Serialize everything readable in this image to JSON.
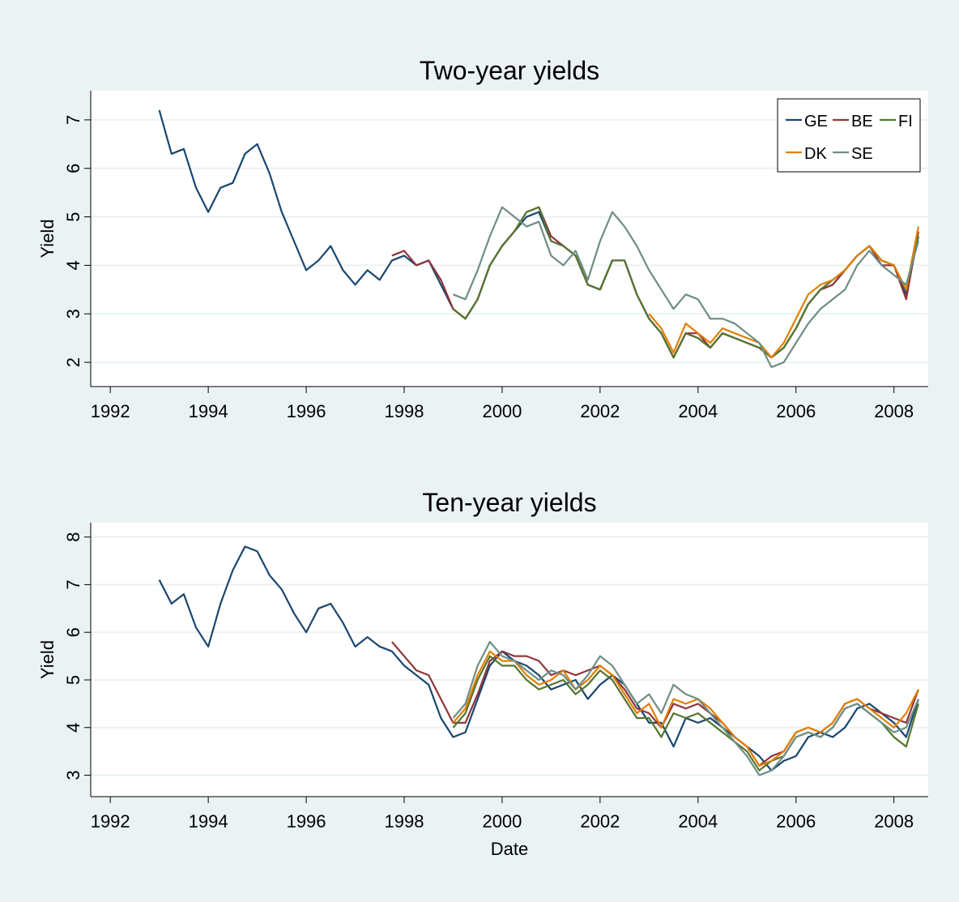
{
  "chart_data": [
    {
      "type": "line",
      "title": "Two-year yields",
      "ylabel": "Yield",
      "x": [
        1993,
        1993.25,
        1993.5,
        1993.75,
        1994,
        1994.25,
        1994.5,
        1994.75,
        1995,
        1995.25,
        1995.5,
        1995.75,
        1996,
        1996.25,
        1996.5,
        1996.75,
        1997,
        1997.25,
        1997.5,
        1997.75,
        1998,
        1998.25,
        1998.5,
        1998.75,
        1999,
        1999.25,
        1999.5,
        1999.75,
        2000,
        2000.25,
        2000.5,
        2000.75,
        2001,
        2001.25,
        2001.5,
        2001.75,
        2002,
        2002.25,
        2002.5,
        2002.75,
        2003,
        2003.25,
        2003.5,
        2003.75,
        2004,
        2004.25,
        2004.5,
        2004.75,
        2005,
        2005.25,
        2005.5,
        2005.75,
        2006,
        2006.25,
        2006.5,
        2006.75,
        2007,
        2007.25,
        2007.5,
        2007.75,
        2008,
        2008.25,
        2008.5
      ],
      "xlim": [
        1991.6,
        2008.7
      ],
      "xticks": [
        1992,
        1994,
        1996,
        1998,
        2000,
        2002,
        2004,
        2006,
        2008
      ],
      "ylim": [
        1.5,
        7.6
      ],
      "yticks": [
        2,
        3,
        4,
        5,
        6,
        7
      ],
      "grid": true,
      "legend": "top-right",
      "series": [
        {
          "name": "GE",
          "color": "#1a476f",
          "values": [
            7.2,
            6.3,
            6.4,
            5.6,
            5.1,
            5.6,
            5.7,
            6.3,
            6.5,
            5.9,
            5.1,
            4.5,
            3.9,
            4.1,
            4.4,
            3.9,
            3.6,
            3.9,
            3.7,
            4.1,
            4.2,
            4.0,
            4.1,
            3.6,
            3.1,
            2.9,
            3.3,
            4.0,
            4.4,
            4.7,
            5.0,
            5.1,
            4.5,
            4.4,
            4.2,
            3.6,
            3.5,
            4.1,
            4.1,
            3.4,
            2.9,
            2.6,
            2.1,
            2.6,
            2.5,
            2.3,
            2.6,
            2.5,
            2.4,
            2.3,
            2.1,
            2.3,
            2.7,
            3.2,
            3.5,
            3.6,
            3.9,
            4.2,
            4.4,
            4.1,
            4.0,
            3.4,
            4.6
          ]
        },
        {
          "name": "BE",
          "color": "#90353b",
          "values": [
            null,
            null,
            null,
            null,
            null,
            null,
            null,
            null,
            null,
            null,
            null,
            null,
            null,
            null,
            null,
            null,
            null,
            null,
            null,
            4.2,
            4.3,
            4.0,
            4.1,
            3.7,
            3.1,
            2.9,
            3.3,
            4.0,
            4.4,
            4.7,
            5.1,
            5.2,
            4.6,
            4.4,
            4.2,
            3.6,
            3.5,
            4.1,
            4.1,
            3.4,
            2.9,
            2.6,
            2.1,
            2.6,
            2.6,
            2.3,
            2.6,
            2.5,
            2.4,
            2.3,
            2.1,
            2.3,
            2.7,
            3.2,
            3.5,
            3.6,
            3.9,
            4.2,
            4.4,
            4.0,
            4.0,
            3.3,
            4.7
          ]
        },
        {
          "name": "FI",
          "color": "#55752f",
          "values": [
            null,
            null,
            null,
            null,
            null,
            null,
            null,
            null,
            null,
            null,
            null,
            null,
            null,
            null,
            null,
            null,
            null,
            null,
            null,
            null,
            null,
            null,
            null,
            null,
            3.1,
            2.9,
            3.3,
            4.0,
            4.4,
            4.7,
            5.1,
            5.2,
            4.5,
            4.4,
            4.2,
            3.6,
            3.5,
            4.1,
            4.1,
            3.4,
            2.9,
            2.6,
            2.1,
            2.6,
            2.5,
            2.3,
            2.6,
            2.5,
            2.4,
            2.3,
            2.1,
            2.3,
            2.7,
            3.2,
            3.5,
            3.7,
            3.9,
            4.2,
            4.4,
            4.1,
            4.0,
            3.5,
            4.6
          ]
        },
        {
          "name": "DK",
          "color": "#e37e00",
          "values": [
            null,
            null,
            null,
            null,
            null,
            null,
            null,
            null,
            null,
            null,
            null,
            null,
            null,
            null,
            null,
            null,
            null,
            null,
            null,
            null,
            null,
            null,
            null,
            null,
            null,
            null,
            null,
            null,
            null,
            null,
            null,
            null,
            null,
            null,
            null,
            null,
            null,
            null,
            null,
            null,
            3.0,
            2.7,
            2.2,
            2.8,
            2.6,
            2.4,
            2.7,
            2.6,
            2.5,
            2.4,
            2.1,
            2.4,
            2.9,
            3.4,
            3.6,
            3.7,
            3.9,
            4.2,
            4.4,
            4.1,
            4.0,
            3.5,
            4.8
          ]
        },
        {
          "name": "SE",
          "color": "#6e8e84",
          "values": [
            null,
            null,
            null,
            null,
            null,
            null,
            null,
            null,
            null,
            null,
            null,
            null,
            null,
            null,
            null,
            null,
            null,
            null,
            null,
            null,
            null,
            null,
            null,
            null,
            3.4,
            3.3,
            3.9,
            4.6,
            5.2,
            5.0,
            4.8,
            4.9,
            4.2,
            4.0,
            4.3,
            3.7,
            4.5,
            5.1,
            4.8,
            4.4,
            3.9,
            3.5,
            3.1,
            3.4,
            3.3,
            2.9,
            2.9,
            2.8,
            2.6,
            2.4,
            1.9,
            2.0,
            2.4,
            2.8,
            3.1,
            3.3,
            3.5,
            4.0,
            4.3,
            4.0,
            3.8,
            3.6,
            4.5
          ]
        }
      ]
    },
    {
      "type": "line",
      "title": "Ten-year yields",
      "ylabel": "Yield",
      "xlabel": "Date",
      "x": [
        1993,
        1993.25,
        1993.5,
        1993.75,
        1994,
        1994.25,
        1994.5,
        1994.75,
        1995,
        1995.25,
        1995.5,
        1995.75,
        1996,
        1996.25,
        1996.5,
        1996.75,
        1997,
        1997.25,
        1997.5,
        1997.75,
        1998,
        1998.25,
        1998.5,
        1998.75,
        1999,
        1999.25,
        1999.5,
        1999.75,
        2000,
        2000.25,
        2000.5,
        2000.75,
        2001,
        2001.25,
        2001.5,
        2001.75,
        2002,
        2002.25,
        2002.5,
        2002.75,
        2003,
        2003.25,
        2003.5,
        2003.75,
        2004,
        2004.25,
        2004.5,
        2004.75,
        2005,
        2005.25,
        2005.5,
        2005.75,
        2006,
        2006.25,
        2006.5,
        2006.75,
        2007,
        2007.25,
        2007.5,
        2007.75,
        2008,
        2008.25,
        2008.5
      ],
      "xlim": [
        1991.6,
        2008.7
      ],
      "xticks": [
        1992,
        1994,
        1996,
        1998,
        2000,
        2002,
        2004,
        2006,
        2008
      ],
      "ylim": [
        2.55,
        8.3
      ],
      "yticks": [
        3,
        4,
        5,
        6,
        7,
        8
      ],
      "grid": true,
      "series": [
        {
          "color": "#1a476f",
          "values": [
            7.1,
            6.6,
            6.8,
            6.1,
            5.7,
            6.6,
            7.3,
            7.8,
            7.7,
            7.2,
            6.9,
            6.4,
            6.0,
            6.5,
            6.6,
            6.2,
            5.7,
            5.9,
            5.7,
            5.6,
            5.3,
            5.1,
            4.9,
            4.2,
            3.8,
            3.9,
            4.6,
            5.3,
            5.6,
            5.4,
            5.3,
            5.1,
            4.8,
            4.9,
            5.0,
            4.6,
            4.9,
            5.1,
            4.9,
            4.5,
            4.1,
            4.1,
            3.6,
            4.2,
            4.1,
            4.2,
            4.0,
            3.8,
            3.6,
            3.4,
            3.1,
            3.3,
            3.4,
            3.8,
            3.9,
            3.8,
            4.0,
            4.4,
            4.5,
            4.3,
            4.1,
            3.8,
            4.6
          ]
        },
        {
          "color": "#90353b",
          "values": [
            null,
            null,
            null,
            null,
            null,
            null,
            null,
            null,
            null,
            null,
            null,
            null,
            null,
            null,
            null,
            null,
            null,
            null,
            null,
            5.8,
            5.5,
            5.2,
            5.1,
            4.6,
            4.1,
            4.1,
            4.7,
            5.4,
            5.6,
            5.5,
            5.5,
            5.4,
            5.1,
            5.2,
            5.1,
            5.2,
            5.3,
            5.1,
            4.8,
            4.4,
            4.3,
            4.0,
            4.5,
            4.4,
            4.5,
            4.3,
            4.1,
            3.8,
            3.6,
            3.2,
            3.4,
            3.5,
            3.9,
            4.0,
            3.9,
            4.1,
            4.5,
            4.6,
            4.4,
            4.3,
            4.2,
            4.1,
            4.8
          ]
        },
        {
          "color": "#55752f",
          "values": [
            null,
            null,
            null,
            null,
            null,
            null,
            null,
            null,
            null,
            null,
            null,
            null,
            null,
            null,
            null,
            null,
            null,
            null,
            null,
            null,
            null,
            null,
            null,
            null,
            4.0,
            4.3,
            5.0,
            5.5,
            5.3,
            5.3,
            5.0,
            4.8,
            4.9,
            5.0,
            4.7,
            4.9,
            5.2,
            5.0,
            4.6,
            4.2,
            4.2,
            3.8,
            4.3,
            4.2,
            4.3,
            4.1,
            3.9,
            3.7,
            3.5,
            3.1,
            3.3,
            3.4,
            3.8,
            3.9,
            3.8,
            4.0,
            4.4,
            4.5,
            4.3,
            4.1,
            3.8,
            3.6,
            4.5
          ]
        },
        {
          "color": "#e37e00",
          "values": [
            null,
            null,
            null,
            null,
            null,
            null,
            null,
            null,
            null,
            null,
            null,
            null,
            null,
            null,
            null,
            null,
            null,
            null,
            null,
            null,
            null,
            null,
            null,
            null,
            4.1,
            4.4,
            5.1,
            5.6,
            5.4,
            5.4,
            5.1,
            4.9,
            5.0,
            5.2,
            4.8,
            5.0,
            5.3,
            5.1,
            4.7,
            4.3,
            4.5,
            4.0,
            4.6,
            4.5,
            4.6,
            4.4,
            4.1,
            3.8,
            3.6,
            3.2,
            3.3,
            3.5,
            3.9,
            4.0,
            3.9,
            4.1,
            4.5,
            4.6,
            4.4,
            4.2,
            4.0,
            4.3,
            4.8
          ]
        },
        {
          "color": "#6e8e84",
          "values": [
            null,
            null,
            null,
            null,
            null,
            null,
            null,
            null,
            null,
            null,
            null,
            null,
            null,
            null,
            null,
            null,
            null,
            null,
            null,
            null,
            null,
            null,
            null,
            null,
            4.2,
            4.5,
            5.3,
            5.8,
            5.5,
            5.4,
            5.2,
            5.0,
            5.2,
            5.1,
            4.8,
            5.1,
            5.5,
            5.3,
            4.9,
            4.5,
            4.7,
            4.3,
            4.9,
            4.7,
            4.6,
            4.3,
            4.0,
            3.7,
            3.4,
            3.0,
            3.1,
            3.4,
            3.8,
            3.9,
            3.8,
            4.0,
            4.4,
            4.5,
            4.3,
            4.1,
            3.9,
            4.0,
            4.6
          ]
        }
      ]
    }
  ]
}
